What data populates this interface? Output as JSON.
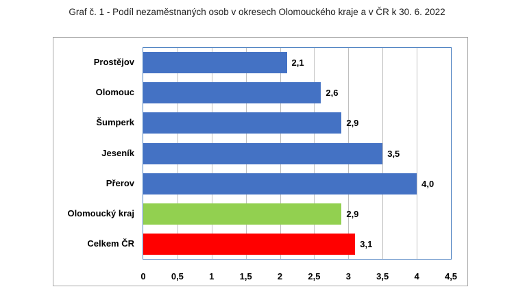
{
  "title": "Graf č. 1 - Podíl nezaměstnaných osob v okresech Olomouckého kraje a v ČR k 30. 6. 2022",
  "chart_data": {
    "type": "bar",
    "orientation": "horizontal",
    "title": "Graf č. 1 - Podíl nezaměstnaných osob v okresech Olomouckého kraje a v ČR k 30. 6. 2022",
    "xlabel": "",
    "ylabel": "",
    "xlim": [
      0,
      4.5
    ],
    "grid": true,
    "legend": "none",
    "categories": [
      "Prostějov",
      "Olomouc",
      "Šumperk",
      "Jeseník",
      "Přerov",
      "Olomoucký kraj",
      "Celkem ČR"
    ],
    "values": [
      2.1,
      2.6,
      2.9,
      3.5,
      4.0,
      2.9,
      3.1
    ],
    "value_labels": [
      "2,1",
      "2,6",
      "2,9",
      "3,5",
      "4,0",
      "2,9",
      "3,1"
    ],
    "bar_colors": [
      "#4472c4",
      "#4472c4",
      "#4472c4",
      "#4472c4",
      "#4472c4",
      "#92d050",
      "#ff0000"
    ],
    "x_ticks": [
      0,
      0.5,
      1,
      1.5,
      2,
      2.5,
      3,
      3.5,
      4,
      4.5
    ],
    "x_tick_labels": [
      "0",
      "0,5",
      "1",
      "1,5",
      "2",
      "2,5",
      "3",
      "3,5",
      "4",
      "4,5"
    ]
  },
  "colors": {
    "district": "#4472c4",
    "region": "#92d050",
    "country": "#ff0000",
    "plot_border": "#4a7fc0",
    "grid": "#bfbfbf",
    "frame": "#a6a6a6"
  }
}
